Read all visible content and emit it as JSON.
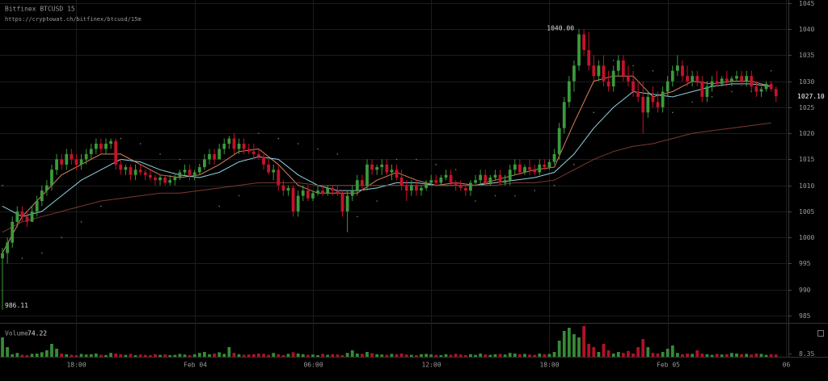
{
  "chart_data": {
    "type": "candlestick",
    "title": "Bitfinex BTCUSD 15",
    "subtitle": "https://cryptowat.ch/bitfinex/btcusd/15m",
    "up_color": "#3c9a3c",
    "down_color": "#c4132b",
    "grid": true,
    "xlim": [
      -0.5,
      159.5
    ],
    "xticks": [
      {
        "value": 15,
        "label": "18:00"
      },
      {
        "value": 39,
        "label": "Feb 04"
      },
      {
        "value": 63,
        "label": "06:00"
      },
      {
        "value": 87,
        "label": "12:00"
      },
      {
        "value": 111,
        "label": "18:00"
      },
      {
        "value": 135,
        "label": "Feb 05"
      },
      {
        "value": 159,
        "label": "06"
      }
    ],
    "ylim": [
      983.9,
      1045.6
    ],
    "yticks": [
      985,
      990,
      995,
      1000,
      1005,
      1010,
      1015,
      1020,
      1025,
      1030,
      1035,
      1040,
      1045
    ],
    "high_label": {
      "value": 1040,
      "label": "1040.00"
    },
    "low_label": 986.11,
    "last_label": {
      "value": 1027.1,
      "label": "1027.10"
    },
    "candles": [
      [
        996,
        998,
        986.11,
        997
      ],
      [
        997,
        1000,
        995,
        999
      ],
      [
        999,
        1004,
        998,
        1003
      ],
      [
        1003,
        1006,
        1002,
        1005
      ],
      [
        1005,
        1006,
        1003,
        1004
      ],
      [
        1004,
        1005,
        1002,
        1003
      ],
      [
        1003,
        1006,
        1003,
        1005
      ],
      [
        1005,
        1008,
        1004,
        1007
      ],
      [
        1007,
        1010,
        1006,
        1009
      ],
      [
        1009,
        1011,
        1008,
        1010
      ],
      [
        1010,
        1014,
        1009,
        1013
      ],
      [
        1013,
        1016,
        1012,
        1015
      ],
      [
        1015,
        1016,
        1013,
        1014
      ],
      [
        1014,
        1017,
        1013,
        1016
      ],
      [
        1016,
        1017,
        1014,
        1015
      ],
      [
        1015,
        1016,
        1013,
        1014
      ],
      [
        1014,
        1016,
        1013,
        1015
      ],
      [
        1015,
        1017,
        1014,
        1016
      ],
      [
        1016,
        1018,
        1015,
        1017
      ],
      [
        1017,
        1019,
        1016,
        1018
      ],
      [
        1018,
        1019,
        1016,
        1017
      ],
      [
        1017,
        1019,
        1016,
        1018
      ],
      [
        1018,
        1019,
        1017,
        1018.5
      ],
      [
        1018.5,
        1019,
        1013,
        1014
      ],
      [
        1014,
        1015,
        1012,
        1013
      ],
      [
        1013,
        1014,
        1012,
        1013.5
      ],
      [
        1013.5,
        1014,
        1011,
        1012
      ],
      [
        1012,
        1014,
        1011,
        1013
      ],
      [
        1013,
        1014,
        1012,
        1012.5
      ],
      [
        1012.5,
        1013,
        1011,
        1012
      ],
      [
        1012,
        1013,
        1011,
        1011.5
      ],
      [
        1011.5,
        1012,
        1010,
        1011
      ],
      [
        1011,
        1012,
        1010,
        1011.5
      ],
      [
        1011.5,
        1012,
        1010,
        1010.5
      ],
      [
        1010.5,
        1012,
        1010,
        1011
      ],
      [
        1011,
        1012,
        1010,
        1011.5
      ],
      [
        1011.5,
        1013,
        1011,
        1012.5
      ],
      [
        1012.5,
        1014,
        1012,
        1013
      ],
      [
        1013,
        1014,
        1011,
        1012
      ],
      [
        1012,
        1013,
        1011,
        1012.5
      ],
      [
        1012.5,
        1014,
        1012,
        1013.5
      ],
      [
        1013.5,
        1016,
        1013,
        1015
      ],
      [
        1015,
        1017,
        1014,
        1016
      ],
      [
        1016,
        1017,
        1014,
        1015
      ],
      [
        1015,
        1018,
        1015,
        1017
      ],
      [
        1017,
        1019,
        1016,
        1018
      ],
      [
        1018,
        1019.5,
        1017,
        1019
      ],
      [
        1019,
        1020,
        1016,
        1017
      ],
      [
        1017,
        1019,
        1016,
        1018
      ],
      [
        1018,
        1019,
        1016,
        1017
      ],
      [
        1017,
        1018,
        1016,
        1016.5
      ],
      [
        1016.5,
        1018,
        1015,
        1016
      ],
      [
        1016,
        1017,
        1015,
        1015.5
      ],
      [
        1015.5,
        1016,
        1013,
        1014
      ],
      [
        1014,
        1015,
        1012,
        1012.5
      ],
      [
        1012.5,
        1014,
        1011,
        1013
      ],
      [
        1013,
        1014,
        1009,
        1010
      ],
      [
        1010,
        1011,
        1008,
        1009
      ],
      [
        1009,
        1010,
        1008,
        1009.5
      ],
      [
        1009.5,
        1010,
        1004,
        1005
      ],
      [
        1005,
        1009,
        1004,
        1008
      ],
      [
        1008,
        1010,
        1007,
        1009
      ],
      [
        1009,
        1010,
        1007,
        1007.5
      ],
      [
        1007.5,
        1009,
        1007,
        1008.5
      ],
      [
        1008.5,
        1010,
        1008,
        1009
      ],
      [
        1009,
        1010,
        1008,
        1008.5
      ],
      [
        1008.5,
        1010,
        1008,
        1009.5
      ],
      [
        1009.5,
        1010,
        1008,
        1009
      ],
      [
        1009,
        1010,
        1008,
        1008.5
      ],
      [
        1008.5,
        1009,
        1004,
        1005
      ],
      [
        1005,
        1009,
        1001,
        1008
      ],
      [
        1008,
        1010,
        1007,
        1009
      ],
      [
        1009,
        1012,
        1008,
        1011
      ],
      [
        1011,
        1012,
        1009,
        1010
      ],
      [
        1010,
        1015,
        1009,
        1014
      ],
      [
        1014,
        1015,
        1012,
        1013
      ],
      [
        1013,
        1014,
        1012,
        1013.5
      ],
      [
        1013.5,
        1015,
        1012,
        1014
      ],
      [
        1014,
        1015,
        1012,
        1012.5
      ],
      [
        1012.5,
        1014,
        1011,
        1013
      ],
      [
        1013,
        1014,
        1011,
        1011.5
      ],
      [
        1011.5,
        1013,
        1009,
        1010
      ],
      [
        1010,
        1011,
        1007,
        1009
      ],
      [
        1009,
        1011,
        1008,
        1010
      ],
      [
        1010,
        1011,
        1008,
        1009
      ],
      [
        1009,
        1010,
        1008,
        1009.5
      ],
      [
        1009.5,
        1011,
        1009,
        1010.5
      ],
      [
        1010.5,
        1012,
        1010,
        1011
      ],
      [
        1011,
        1012,
        1010,
        1010.5
      ],
      [
        1010.5,
        1012,
        1010,
        1011.5
      ],
      [
        1011.5,
        1013,
        1011,
        1012
      ],
      [
        1012,
        1013,
        1010,
        1010.5
      ],
      [
        1010.5,
        1011,
        1009,
        1010
      ],
      [
        1010,
        1011,
        1009,
        1009.5
      ],
      [
        1009.5,
        1010,
        1008,
        1009
      ],
      [
        1009,
        1011,
        1008,
        1010.5
      ],
      [
        1010.5,
        1012,
        1010,
        1011
      ],
      [
        1011,
        1013,
        1010,
        1012
      ],
      [
        1012,
        1013,
        1010,
        1010.5
      ],
      [
        1010.5,
        1012,
        1010,
        1011.5
      ],
      [
        1011.5,
        1013,
        1011,
        1012
      ],
      [
        1012,
        1013,
        1010,
        1010.5
      ],
      [
        1010.5,
        1012,
        1010,
        1011
      ],
      [
        1011,
        1014,
        1010,
        1013
      ],
      [
        1013,
        1015,
        1012,
        1014
      ],
      [
        1014,
        1015,
        1012,
        1012.5
      ],
      [
        1012.5,
        1014,
        1012,
        1013.5
      ],
      [
        1013.5,
        1015,
        1012,
        1013
      ],
      [
        1013,
        1014,
        1012,
        1012.5
      ],
      [
        1012.5,
        1015,
        1012,
        1014
      ],
      [
        1014,
        1015,
        1013,
        1013.5
      ],
      [
        1013.5,
        1015,
        1013,
        1014.5
      ],
      [
        1014.5,
        1017,
        1014,
        1016
      ],
      [
        1016,
        1022,
        1015,
        1021
      ],
      [
        1021,
        1027,
        1020,
        1026
      ],
      [
        1026,
        1031,
        1025,
        1030
      ],
      [
        1030,
        1034,
        1028,
        1033
      ],
      [
        1033,
        1040,
        1032,
        1039
      ],
      [
        1039,
        1040,
        1035,
        1036
      ],
      [
        1036,
        1039.5,
        1032,
        1033
      ],
      [
        1033,
        1035,
        1030,
        1031
      ],
      [
        1031,
        1034,
        1030,
        1033
      ],
      [
        1033,
        1035,
        1029,
        1030
      ],
      [
        1030,
        1032,
        1028,
        1029
      ],
      [
        1029,
        1033,
        1028,
        1032
      ],
      [
        1032,
        1035,
        1031,
        1034
      ],
      [
        1034,
        1035,
        1030,
        1031
      ],
      [
        1031,
        1033,
        1029,
        1030
      ],
      [
        1030,
        1032,
        1027,
        1028
      ],
      [
        1028,
        1030,
        1026,
        1027
      ],
      [
        1027,
        1030,
        1020,
        1024
      ],
      [
        1024,
        1028,
        1023,
        1027
      ],
      [
        1027,
        1029,
        1025,
        1026
      ],
      [
        1026,
        1028,
        1024,
        1025
      ],
      [
        1025,
        1029,
        1024,
        1028
      ],
      [
        1028,
        1031,
        1027,
        1030
      ],
      [
        1030,
        1033,
        1029,
        1032
      ],
      [
        1032,
        1035,
        1031,
        1033
      ],
      [
        1033,
        1034,
        1030,
        1031
      ],
      [
        1031,
        1033,
        1029,
        1030
      ],
      [
        1030,
        1032,
        1029,
        1031
      ],
      [
        1031,
        1032,
        1029,
        1030
      ],
      [
        1030,
        1031,
        1026,
        1027
      ],
      [
        1027,
        1030,
        1026,
        1029
      ],
      [
        1029,
        1031,
        1028,
        1030
      ],
      [
        1030,
        1032,
        1029,
        1029.5
      ],
      [
        1029.5,
        1031,
        1029,
        1030.5
      ],
      [
        1030.5,
        1032,
        1029,
        1030
      ],
      [
        1030,
        1031,
        1029,
        1030.5
      ],
      [
        1030.5,
        1032,
        1030,
        1031
      ],
      [
        1031,
        1032,
        1029,
        1030
      ],
      [
        1030,
        1032,
        1029,
        1031
      ],
      [
        1031,
        1032,
        1028,
        1029
      ],
      [
        1029,
        1030,
        1027,
        1028
      ],
      [
        1028,
        1029,
        1027,
        1028.5
      ],
      [
        1028.5,
        1030,
        1028,
        1029.5
      ],
      [
        1029.5,
        1030,
        1028,
        1028.5
      ],
      [
        1028.5,
        1029,
        1026,
        1027.1
      ]
    ],
    "series": [
      {
        "color": "#d9825a",
        "style": "solid",
        "x": [
          0,
          4,
          8,
          12,
          16,
          20,
          24,
          28,
          32,
          36,
          40,
          44,
          48,
          52,
          56,
          60,
          64,
          68,
          72,
          76,
          80,
          84,
          88,
          92,
          96,
          100,
          104,
          108,
          112,
          116,
          120,
          124,
          128,
          132,
          136,
          140,
          144,
          148,
          152,
          156
        ],
        "values": [
          997,
          1004,
          1008,
          1012,
          1014,
          1016,
          1016,
          1014,
          1012,
          1011.5,
          1012,
          1014,
          1016.5,
          1017,
          1014,
          1010,
          1008.5,
          1008.5,
          1008.5,
          1011,
          1012.5,
          1011,
          1010,
          1010.5,
          1010,
          1011,
          1012,
          1013,
          1013.5,
          1022,
          1030,
          1031,
          1031,
          1027,
          1028,
          1030,
          1029.5,
          1030,
          1030,
          1029
        ]
      },
      {
        "color": "#8fd3e0",
        "style": "solid",
        "x": [
          0,
          4,
          8,
          12,
          16,
          20,
          24,
          28,
          32,
          36,
          40,
          44,
          48,
          52,
          56,
          60,
          64,
          68,
          72,
          76,
          80,
          84,
          88,
          92,
          96,
          100,
          104,
          108,
          112,
          116,
          120,
          124,
          128,
          132,
          136,
          140,
          144,
          148,
          152,
          156
        ],
        "values": [
          1006,
          1004,
          1005,
          1008,
          1011,
          1013,
          1015,
          1014.5,
          1013,
          1012,
          1011.5,
          1012.5,
          1014.5,
          1015.5,
          1015,
          1012,
          1010,
          1009,
          1009,
          1009.5,
          1010.5,
          1010.5,
          1010,
          1010,
          1010,
          1010.5,
          1011,
          1011.5,
          1012.5,
          1016,
          1021,
          1025,
          1028,
          1027.5,
          1027,
          1028,
          1029,
          1029.5,
          1029.5,
          1029
        ]
      },
      {
        "color": "#7a3a30",
        "style": "solid",
        "x": [
          0,
          4,
          8,
          12,
          16,
          20,
          24,
          28,
          32,
          36,
          40,
          44,
          48,
          52,
          56,
          60,
          64,
          68,
          72,
          76,
          80,
          84,
          88,
          92,
          96,
          100,
          104,
          108,
          112,
          116,
          120,
          124,
          128,
          132,
          136,
          140,
          144,
          148,
          152,
          156
        ],
        "values": [
          1001,
          1003,
          1004,
          1005,
          1006,
          1007,
          1007.5,
          1008,
          1008.5,
          1008.5,
          1009,
          1009.5,
          1010,
          1010.5,
          1010.5,
          1010.5,
          1010,
          1010,
          1010,
          1010,
          1010,
          1010,
          1010,
          1010,
          1010,
          1010,
          1010.5,
          1010.5,
          1011,
          1013,
          1015,
          1016.5,
          1017.5,
          1018,
          1019,
          1020,
          1020.5,
          1021,
          1021.5,
          1022
        ]
      },
      {
        "color": "#777777",
        "style": "dotted",
        "x": [
          0,
          4,
          8,
          12,
          16,
          20,
          24,
          28,
          32,
          36,
          40,
          44,
          48,
          52,
          56,
          60,
          64,
          68,
          72,
          76,
          80,
          84,
          88,
          92,
          96,
          100,
          104,
          108,
          112,
          116,
          120,
          124,
          128,
          132,
          136,
          140,
          144,
          148,
          152,
          156
        ],
        "values": [
          1010,
          996,
          997,
          1000,
          1003,
          1006,
          1019,
          1018,
          1016,
          1015,
          1014,
          1006,
          1008,
          1020,
          1019,
          1018,
          1017,
          1016,
          1004,
          1007,
          1015,
          1015,
          1014,
          1013,
          1007,
          1008,
          1008,
          1009,
          1010,
          1014,
          1024,
          1034,
          1033,
          1032,
          1024,
          1026,
          1027,
          1028,
          1028,
          1032
        ]
      }
    ],
    "volume_title": "Volume",
    "volume_value": 74.22,
    "volume_ylim": [
      0,
      100
    ],
    "volume_yticks": [
      8.35
    ],
    "volume": [
      60,
      30,
      8,
      12,
      6,
      5,
      9,
      10,
      14,
      20,
      40,
      25,
      10,
      8,
      6,
      5,
      9,
      7,
      8,
      10,
      6,
      5,
      12,
      10,
      8,
      6,
      9,
      5,
      7,
      6,
      5,
      8,
      6,
      7,
      5,
      6,
      9,
      7,
      5,
      8,
      12,
      15,
      8,
      10,
      14,
      9,
      30,
      12,
      8,
      6,
      7,
      8,
      10,
      9,
      6,
      12,
      8,
      5,
      9,
      14,
      10,
      8,
      6,
      7,
      5,
      9,
      6,
      8,
      7,
      5,
      12,
      20,
      10,
      9,
      15,
      11,
      8,
      7,
      6,
      9,
      8,
      10,
      7,
      6,
      5,
      8,
      9,
      7,
      6,
      5,
      8,
      6,
      9,
      7,
      5,
      8,
      6,
      10,
      7,
      6,
      8,
      9,
      7,
      12,
      10,
      8,
      9,
      7,
      6,
      10,
      8,
      9,
      15,
      50,
      80,
      90,
      70,
      60,
      95,
      40,
      30,
      15,
      40,
      20,
      10,
      15,
      12,
      18,
      10,
      30,
      55,
      30,
      12,
      10,
      15,
      25,
      35,
      12,
      8,
      10,
      9,
      20,
      10,
      8,
      6,
      9,
      7,
      8,
      12,
      10,
      8,
      9,
      7,
      10,
      9,
      6,
      8,
      7
    ]
  }
}
